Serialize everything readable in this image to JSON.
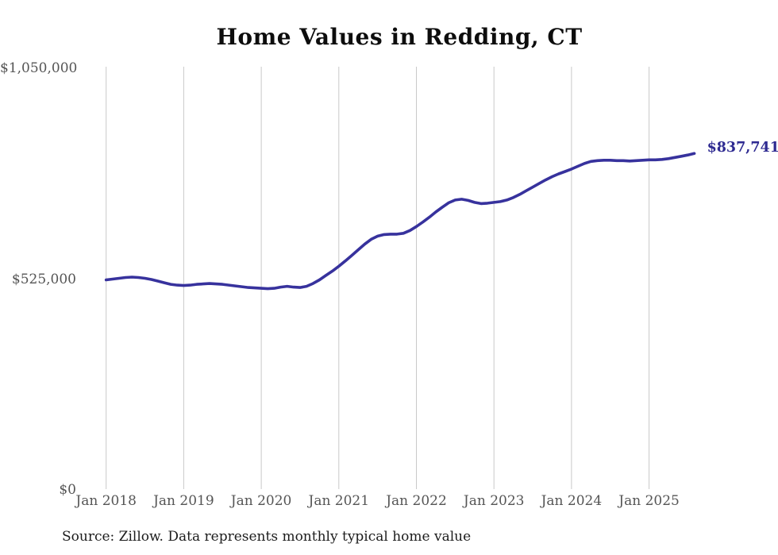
{
  "title": "Home Values in Redding, CT",
  "source_note": "Source: Zillow. Data represents monthly typical home value",
  "colors": {
    "line": "#37329d",
    "end_label": "#2e2a91",
    "grid": "#c9c9c9",
    "axis_text": "#555555",
    "title_text": "#0d0d0d"
  },
  "chart_data": {
    "type": "line",
    "title": "Home Values in Redding, CT",
    "xlabel": "",
    "ylabel": "",
    "x_start": "Jan 2018",
    "x_end": "Aug 2025",
    "x_frequency": "monthly",
    "x_tick_labels": [
      "Jan 2018",
      "Jan 2019",
      "Jan 2020",
      "Jan 2021",
      "Jan 2022",
      "Jan 2023",
      "Jan 2024",
      "Jan 2025"
    ],
    "x_tick_month_indices": [
      0,
      12,
      24,
      36,
      48,
      60,
      72,
      84
    ],
    "y_ticks": [
      0,
      525000,
      1050000
    ],
    "y_tick_labels": [
      "$0",
      "$525,000",
      "$1,050,000"
    ],
    "ylim": [
      0,
      1050000
    ],
    "grid": "vertical-only",
    "legend": "none",
    "last_value": 837741,
    "last_value_label": "$837,741",
    "values": [
      523000,
      525000,
      527000,
      529000,
      530000,
      529000,
      527000,
      524000,
      520000,
      516000,
      512000,
      510000,
      509000,
      510000,
      512000,
      513000,
      514000,
      513000,
      512000,
      510000,
      508000,
      506000,
      504000,
      503000,
      502000,
      501000,
      502000,
      505000,
      507000,
      505000,
      504000,
      507000,
      514000,
      523000,
      534000,
      545000,
      557000,
      570000,
      584000,
      598000,
      612000,
      624000,
      632000,
      636000,
      637000,
      637000,
      639000,
      646000,
      656000,
      667000,
      679000,
      692000,
      704000,
      715000,
      722000,
      724000,
      721000,
      716000,
      713000,
      714000,
      716000,
      718000,
      722000,
      728000,
      736000,
      745000,
      754000,
      763000,
      772000,
      780000,
      787000,
      793000,
      799000,
      806000,
      813000,
      818000,
      820000,
      821000,
      821000,
      820000,
      820000,
      819000,
      820000,
      821000,
      822000,
      822000,
      823000,
      825000,
      828000,
      831000,
      834000,
      837741
    ]
  }
}
